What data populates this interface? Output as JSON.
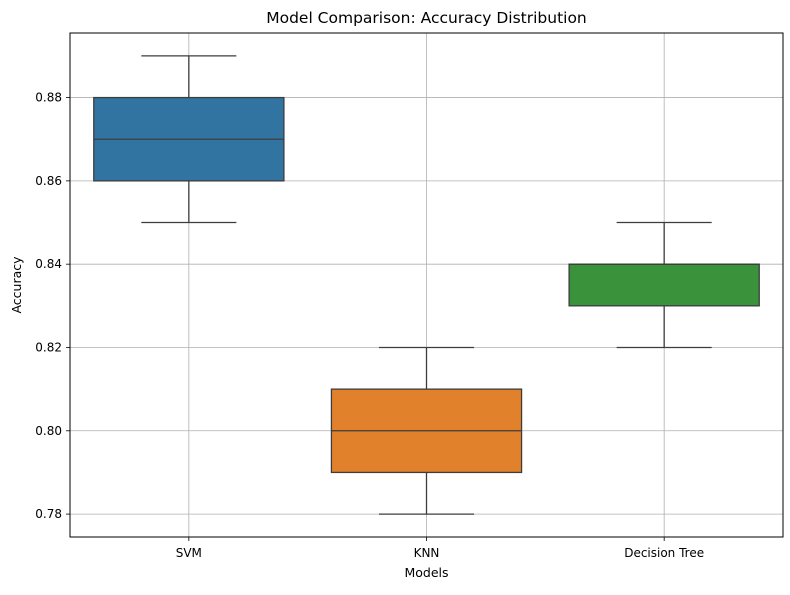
{
  "chart_data": {
    "type": "box",
    "title": "Model Comparison: Accuracy Distribution",
    "xlabel": "Models",
    "ylabel": "Accuracy",
    "categories": [
      "SVM",
      "KNN",
      "Decision Tree"
    ],
    "boxes": [
      {
        "category": "SVM",
        "whisker_low": 0.85,
        "q1": 0.86,
        "median": 0.87,
        "q3": 0.88,
        "whisker_high": 0.89,
        "color": "#3274a1"
      },
      {
        "category": "KNN",
        "whisker_low": 0.78,
        "q1": 0.79,
        "median": 0.8,
        "q3": 0.81,
        "whisker_high": 0.82,
        "color": "#e1812c"
      },
      {
        "category": "Decision Tree",
        "whisker_low": 0.82,
        "q1": 0.83,
        "median": 0.84,
        "q3": 0.84,
        "whisker_high": 0.85,
        "color": "#3a923a"
      }
    ],
    "yticks": [
      0.78,
      0.8,
      0.82,
      0.84,
      0.86,
      0.88
    ],
    "ytick_labels": [
      "0.78",
      "0.80",
      "0.82",
      "0.84",
      "0.86",
      "0.88"
    ],
    "ylim": [
      0.7745,
      0.8955
    ],
    "grid": true,
    "grid_color": "#b0b0b0",
    "box_edge_color": "#3d3d3d"
  }
}
